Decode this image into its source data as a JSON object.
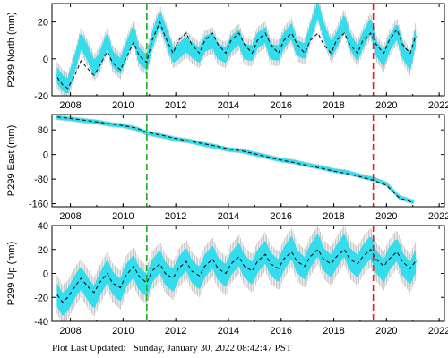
{
  "chart_data": [
    {
      "type": "scatter",
      "ylabel": "P299 North (mm)",
      "xlim": [
        2007.3,
        2022.2
      ],
      "ylim": [
        -20,
        30
      ],
      "xticks": [
        2008,
        2010,
        2012,
        2014,
        2016,
        2018,
        2020,
        2022
      ],
      "yticks": [
        -20,
        0,
        20
      ],
      "markers": [
        {
          "x": 2010.9,
          "color": "#22aa22"
        },
        {
          "x": 2019.5,
          "color": "#dd2222"
        }
      ],
      "series": [
        {
          "role": "observations",
          "color": "#33ddee",
          "error_color": "#aaaaaa",
          "x": [
            2007.5,
            2007.7,
            2007.9,
            2008.2,
            2008.4,
            2008.7,
            2008.9,
            2009.1,
            2009.4,
            2009.6,
            2009.9,
            2010.1,
            2010.4,
            2010.6,
            2010.9,
            2011.1,
            2011.4,
            2011.6,
            2011.9,
            2012.1,
            2012.4,
            2012.6,
            2012.9,
            2013.1,
            2013.4,
            2013.6,
            2013.9,
            2014.1,
            2014.4,
            2014.6,
            2014.9,
            2015.1,
            2015.4,
            2015.6,
            2015.9,
            2016.1,
            2016.4,
            2016.6,
            2016.9,
            2017.1,
            2017.4,
            2017.6,
            2017.9,
            2018.1,
            2018.4,
            2018.6,
            2018.9,
            2019.1,
            2019.4,
            2019.6,
            2019.9,
            2020.1,
            2020.4,
            2020.6,
            2020.9,
            2021.1
          ],
          "y": [
            -9,
            -13,
            -15,
            -1,
            10,
            2,
            -5,
            -1,
            10,
            0,
            -4,
            4,
            14,
            2,
            -2,
            10,
            22,
            14,
            2,
            4,
            8,
            5,
            2,
            8,
            10,
            4,
            2,
            8,
            12,
            4,
            3,
            10,
            13,
            4,
            3,
            10,
            15,
            6,
            4,
            14,
            27,
            16,
            5,
            10,
            20,
            10,
            3,
            10,
            18,
            6,
            0,
            8,
            15,
            5,
            -2,
            12
          ]
        },
        {
          "role": "model",
          "color": "#000000",
          "style": "dashed",
          "x": [
            2007.5,
            2007.7,
            2007.9,
            2008.2,
            2008.4,
            2008.7,
            2008.9,
            2009.1,
            2009.4,
            2009.6,
            2009.9,
            2010.1,
            2010.4,
            2010.6,
            2010.9,
            2011.1,
            2011.4,
            2011.6,
            2011.9,
            2012.1,
            2012.4,
            2012.6,
            2012.9,
            2013.1,
            2013.4,
            2013.6,
            2013.9,
            2014.1,
            2014.4,
            2014.6,
            2014.9,
            2015.1,
            2015.4,
            2015.6,
            2015.9,
            2016.1,
            2016.4,
            2016.6,
            2016.9,
            2017.1,
            2017.4,
            2017.6,
            2017.9,
            2018.1,
            2018.4,
            2018.6,
            2018.9,
            2019.1,
            2019.4,
            2019.6,
            2019.9,
            2020.1,
            2020.4,
            2020.6,
            2020.9,
            2021.1
          ],
          "y": [
            -10,
            -14,
            -16,
            -8,
            -1,
            -6,
            -9,
            -4,
            4,
            -2,
            -6,
            0,
            9,
            2,
            -2,
            10,
            20,
            12,
            3,
            10,
            14,
            8,
            3,
            10,
            14,
            8,
            3,
            10,
            14,
            8,
            3,
            10,
            14,
            8,
            3,
            10,
            14,
            8,
            3,
            10,
            14,
            8,
            3,
            10,
            14,
            8,
            3,
            10,
            14,
            8,
            3,
            10,
            16,
            8,
            3,
            12
          ]
        }
      ]
    },
    {
      "type": "scatter",
      "ylabel": "P299 East (mm)",
      "xlim": [
        2007.3,
        2022.2
      ],
      "ylim": [
        -170,
        130
      ],
      "xticks": [
        2008,
        2010,
        2012,
        2014,
        2016,
        2018,
        2020,
        2022
      ],
      "yticks": [
        -160,
        -80,
        0,
        80
      ],
      "markers": [
        {
          "x": 2010.9,
          "color": "#22aa22"
        },
        {
          "x": 2019.5,
          "color": "#dd2222"
        }
      ],
      "series": [
        {
          "role": "observations",
          "color": "#33ddee",
          "error_color": "#aaaaaa",
          "x": [
            2007.5,
            2008.0,
            2008.5,
            2009.0,
            2009.5,
            2010.0,
            2010.5,
            2010.9,
            2011.5,
            2012.0,
            2012.5,
            2013.0,
            2013.5,
            2014.0,
            2014.5,
            2015.0,
            2015.5,
            2016.0,
            2016.5,
            2017.0,
            2017.5,
            2018.0,
            2018.5,
            2019.0,
            2019.5,
            2020.0,
            2020.5,
            2021.0
          ],
          "y": [
            120,
            116,
            110,
            106,
            98,
            94,
            84,
            70,
            60,
            50,
            44,
            34,
            26,
            16,
            12,
            2,
            -8,
            -18,
            -24,
            -34,
            -42,
            -52,
            -58,
            -70,
            -80,
            -96,
            -140,
            -154
          ]
        },
        {
          "role": "model",
          "color": "#000000",
          "style": "dashed",
          "x": [
            2007.5,
            2008.0,
            2008.5,
            2009.0,
            2009.5,
            2010.0,
            2010.5,
            2010.9,
            2011.5,
            2012.0,
            2012.5,
            2013.0,
            2013.5,
            2014.0,
            2014.5,
            2015.0,
            2015.5,
            2016.0,
            2016.5,
            2017.0,
            2017.5,
            2018.0,
            2018.5,
            2019.0,
            2019.5,
            2020.0,
            2020.5,
            2021.0
          ],
          "y": [
            122,
            117,
            112,
            106,
            100,
            94,
            86,
            72,
            62,
            52,
            44,
            36,
            28,
            18,
            12,
            2,
            -8,
            -18,
            -26,
            -36,
            -44,
            -54,
            -62,
            -72,
            -84,
            -100,
            -142,
            -156
          ]
        }
      ]
    },
    {
      "type": "scatter",
      "ylabel": "P299 Up (mm)",
      "xlim": [
        2007.3,
        2022.2
      ],
      "ylim": [
        -40,
        40
      ],
      "xticks": [
        2008,
        2010,
        2012,
        2014,
        2016,
        2018,
        2020,
        2022
      ],
      "yticks": [
        -40,
        -20,
        0,
        20,
        40
      ],
      "markers": [
        {
          "x": 2010.9,
          "color": "#22aa22"
        },
        {
          "x": 2019.5,
          "color": "#dd2222"
        }
      ],
      "series": [
        {
          "role": "observations",
          "color": "#33ddee",
          "error_color": "#aaaaaa",
          "x": [
            2007.5,
            2007.7,
            2007.9,
            2008.2,
            2008.4,
            2008.7,
            2008.9,
            2009.1,
            2009.4,
            2009.6,
            2009.9,
            2010.1,
            2010.4,
            2010.6,
            2010.9,
            2011.1,
            2011.4,
            2011.6,
            2011.9,
            2012.1,
            2012.4,
            2012.6,
            2012.9,
            2013.1,
            2013.4,
            2013.6,
            2013.9,
            2014.1,
            2014.4,
            2014.6,
            2014.9,
            2015.1,
            2015.4,
            2015.6,
            2015.9,
            2016.1,
            2016.4,
            2016.6,
            2016.9,
            2017.1,
            2017.4,
            2017.6,
            2017.9,
            2018.1,
            2018.4,
            2018.6,
            2018.9,
            2019.1,
            2019.4,
            2019.6,
            2019.9,
            2020.1,
            2020.4,
            2020.6,
            2020.9,
            2021.1
          ],
          "y": [
            -18,
            -26,
            -22,
            -10,
            -4,
            -14,
            -20,
            -10,
            2,
            -8,
            -14,
            -2,
            6,
            -4,
            -10,
            2,
            10,
            0,
            -6,
            4,
            12,
            2,
            -4,
            6,
            14,
            4,
            -2,
            8,
            16,
            6,
            0,
            10,
            18,
            8,
            2,
            12,
            22,
            10,
            4,
            14,
            24,
            12,
            6,
            14,
            24,
            12,
            6,
            14,
            22,
            10,
            2,
            12,
            20,
            8,
            0,
            10
          ]
        },
        {
          "role": "model",
          "color": "#000000",
          "style": "dashed",
          "x": [
            2007.5,
            2007.7,
            2007.9,
            2008.2,
            2008.4,
            2008.7,
            2008.9,
            2009.1,
            2009.4,
            2009.6,
            2009.9,
            2010.1,
            2010.4,
            2010.6,
            2010.9,
            2011.1,
            2011.4,
            2011.6,
            2011.9,
            2012.1,
            2012.4,
            2012.6,
            2012.9,
            2013.1,
            2013.4,
            2013.6,
            2013.9,
            2014.1,
            2014.4,
            2014.6,
            2014.9,
            2015.1,
            2015.4,
            2015.6,
            2015.9,
            2016.1,
            2016.4,
            2016.6,
            2016.9,
            2017.1,
            2017.4,
            2017.6,
            2017.9,
            2018.1,
            2018.4,
            2018.6,
            2018.9,
            2019.1,
            2019.4,
            2019.6,
            2019.9,
            2020.1,
            2020.4,
            2020.6,
            2020.9,
            2021.1
          ],
          "y": [
            -18,
            -24,
            -20,
            -10,
            -4,
            -12,
            -16,
            -8,
            0,
            -8,
            -12,
            -2,
            6,
            -2,
            -8,
            2,
            8,
            0,
            -4,
            4,
            10,
            2,
            -2,
            6,
            12,
            4,
            0,
            8,
            14,
            6,
            2,
            10,
            16,
            8,
            4,
            12,
            18,
            10,
            6,
            14,
            20,
            12,
            8,
            14,
            20,
            12,
            8,
            14,
            20,
            12,
            6,
            12,
            18,
            10,
            4,
            10
          ]
        }
      ]
    }
  ],
  "footer": {
    "label": "Plot Last Updated:",
    "timestamp": "Sunday, January 30, 2022 08:42:47 PST"
  }
}
